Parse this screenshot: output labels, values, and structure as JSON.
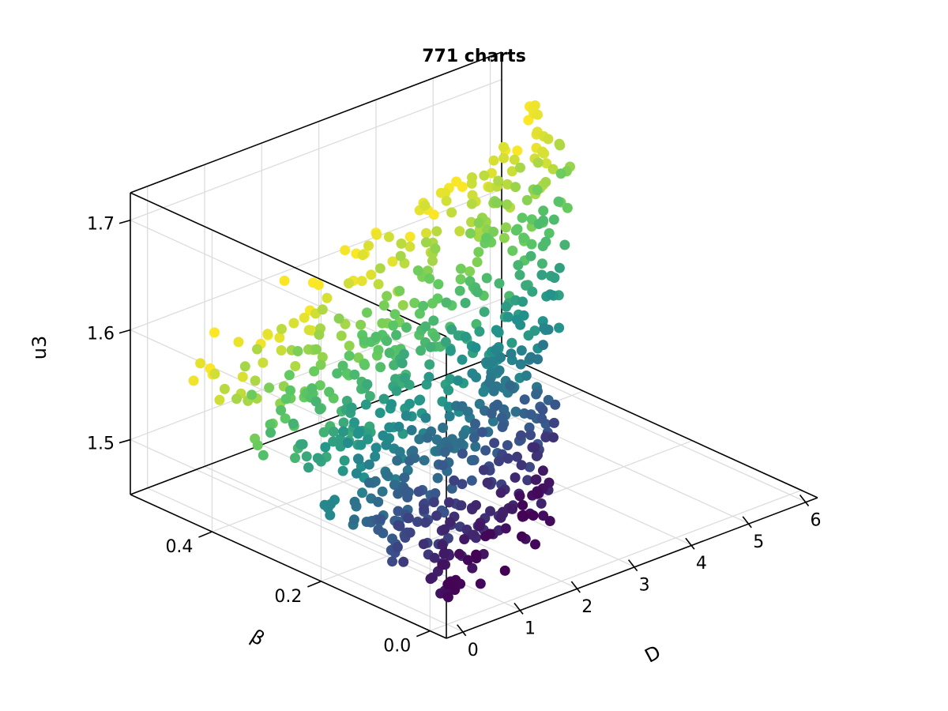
{
  "chart_data": {
    "type": "scatter",
    "title": "771 charts",
    "xlabel": "D",
    "ylabel": "β",
    "zlabel": "u3",
    "xlim": [
      -0.3,
      6.2
    ],
    "ylim": [
      -0.03,
      0.55
    ],
    "zlim": [
      1.45,
      1.725
    ],
    "xticks": [
      "0",
      "1",
      "2",
      "3",
      "4",
      "5",
      "6"
    ],
    "yticks": [
      "0.0",
      "0.2",
      "0.4"
    ],
    "zticks": [
      "1.5",
      "1.6",
      "1.7"
    ],
    "grid": true,
    "colormap": [
      "#440154",
      "#3b528b",
      "#21918c",
      "#5ec962",
      "#fde725"
    ],
    "color_by": "β",
    "point_count": 771
  }
}
